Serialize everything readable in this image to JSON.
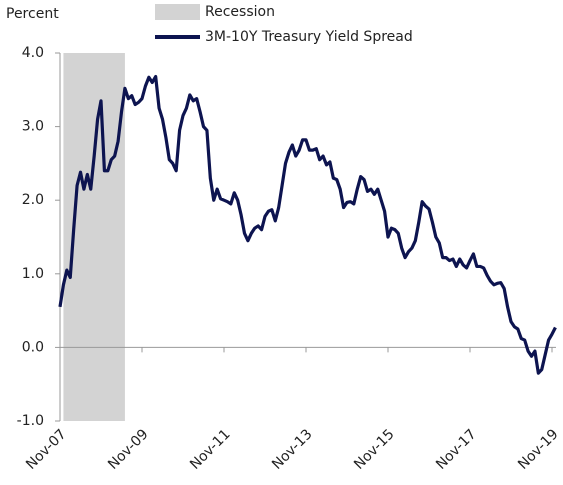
{
  "chart_data": {
    "type": "line",
    "y_label": "Percent",
    "x": [
      "2007-11",
      "2007-12",
      "2008-01",
      "2008-02",
      "2008-03",
      "2008-04",
      "2008-05",
      "2008-06",
      "2008-07",
      "2008-08",
      "2008-09",
      "2008-10",
      "2008-11",
      "2008-12",
      "2009-01",
      "2009-02",
      "2009-03",
      "2009-04",
      "2009-05",
      "2009-06",
      "2009-07",
      "2009-08",
      "2009-09",
      "2009-10",
      "2009-11",
      "2009-12",
      "2010-01",
      "2010-02",
      "2010-03",
      "2010-04",
      "2010-05",
      "2010-06",
      "2010-07",
      "2010-08",
      "2010-09",
      "2010-10",
      "2010-11",
      "2010-12",
      "2011-01",
      "2011-02",
      "2011-03",
      "2011-04",
      "2011-05",
      "2011-06",
      "2011-07",
      "2011-08",
      "2011-09",
      "2011-10",
      "2011-11",
      "2011-12",
      "2012-01",
      "2012-02",
      "2012-03",
      "2012-04",
      "2012-05",
      "2012-06",
      "2012-07",
      "2012-08",
      "2012-09",
      "2012-10",
      "2012-11",
      "2012-12",
      "2013-01",
      "2013-02",
      "2013-03",
      "2013-04",
      "2013-05",
      "2013-06",
      "2013-07",
      "2013-08",
      "2013-09",
      "2013-10",
      "2013-11",
      "2013-12",
      "2014-01",
      "2014-02",
      "2014-03",
      "2014-04",
      "2014-05",
      "2014-06",
      "2014-07",
      "2014-08",
      "2014-09",
      "2014-10",
      "2014-11",
      "2014-12",
      "2015-01",
      "2015-02",
      "2015-03",
      "2015-04",
      "2015-05",
      "2015-06",
      "2015-07",
      "2015-08",
      "2015-09",
      "2015-10",
      "2015-11",
      "2015-12",
      "2016-01",
      "2016-02",
      "2016-03",
      "2016-04",
      "2016-05",
      "2016-06",
      "2016-07",
      "2016-08",
      "2016-09",
      "2016-10",
      "2016-11",
      "2016-12",
      "2017-01",
      "2017-02",
      "2017-03",
      "2017-04",
      "2017-05",
      "2017-06",
      "2017-07",
      "2017-08",
      "2017-09",
      "2017-10",
      "2017-11",
      "2017-12",
      "2018-01",
      "2018-02",
      "2018-03",
      "2018-04",
      "2018-05",
      "2018-06",
      "2018-07",
      "2018-08",
      "2018-09",
      "2018-10",
      "2018-11",
      "2018-12",
      "2019-01",
      "2019-02",
      "2019-03",
      "2019-04",
      "2019-05",
      "2019-06",
      "2019-07",
      "2019-08",
      "2019-09",
      "2019-10",
      "2019-11",
      "2019-12"
    ],
    "series": [
      {
        "name": "3M-10Y Treasury Yield Spread",
        "color": "#0d1450",
        "values": [
          0.55,
          0.85,
          1.05,
          0.95,
          1.6,
          2.2,
          2.38,
          2.15,
          2.35,
          2.15,
          2.6,
          3.1,
          3.35,
          2.4,
          2.4,
          2.55,
          2.6,
          2.8,
          3.2,
          3.52,
          3.38,
          3.42,
          3.3,
          3.33,
          3.38,
          3.55,
          3.67,
          3.6,
          3.68,
          3.25,
          3.1,
          2.85,
          2.55,
          2.5,
          2.4,
          2.95,
          3.15,
          3.25,
          3.43,
          3.35,
          3.38,
          3.2,
          3.0,
          2.95,
          2.3,
          2.0,
          2.15,
          2.02,
          2.0,
          1.98,
          1.95,
          2.1,
          2.0,
          1.8,
          1.55,
          1.45,
          1.55,
          1.62,
          1.65,
          1.6,
          1.78,
          1.85,
          1.87,
          1.72,
          1.9,
          2.2,
          2.5,
          2.65,
          2.75,
          2.6,
          2.68,
          2.82,
          2.82,
          2.68,
          2.68,
          2.7,
          2.55,
          2.6,
          2.48,
          2.52,
          2.3,
          2.28,
          2.15,
          1.9,
          1.97,
          1.98,
          1.95,
          2.15,
          2.32,
          2.28,
          2.12,
          2.15,
          2.08,
          2.15,
          2.0,
          1.85,
          1.5,
          1.62,
          1.6,
          1.55,
          1.35,
          1.22,
          1.3,
          1.35,
          1.45,
          1.7,
          1.98,
          1.92,
          1.88,
          1.7,
          1.5,
          1.42,
          1.22,
          1.22,
          1.18,
          1.2,
          1.1,
          1.2,
          1.12,
          1.08,
          1.18,
          1.27,
          1.1,
          1.1,
          1.08,
          0.98,
          0.9,
          0.85,
          0.87,
          0.88,
          0.8,
          0.55,
          0.35,
          0.28,
          0.25,
          0.12,
          0.1,
          -0.05,
          -0.12,
          -0.05,
          -0.35,
          -0.3,
          -0.1,
          0.1,
          0.18,
          0.27
        ]
      }
    ],
    "shaded_regions": [
      {
        "name": "Recession",
        "start": "2007-12",
        "end": "2009-06",
        "color": "#d3d3d3"
      }
    ],
    "xlim": [
      "2007-11",
      "2019-11"
    ],
    "xticks": [
      {
        "value": "2007-11",
        "label": "Nov-07"
      },
      {
        "value": "2009-11",
        "label": "Nov-09"
      },
      {
        "value": "2011-11",
        "label": "Nov-11"
      },
      {
        "value": "2013-11",
        "label": "Nov-13"
      },
      {
        "value": "2015-11",
        "label": "Nov-15"
      },
      {
        "value": "2017-11",
        "label": "Nov-17"
      },
      {
        "value": "2019-11",
        "label": "Nov-19"
      }
    ],
    "ylim": [
      -1,
      4
    ],
    "yticks": [
      {
        "value": -1,
        "label": "-1.0"
      },
      {
        "value": 0,
        "label": "0.0"
      },
      {
        "value": 1,
        "label": "1.0"
      },
      {
        "value": 2,
        "label": "2.0"
      },
      {
        "value": 3,
        "label": "3.0"
      },
      {
        "value": 4,
        "label": "4.0"
      }
    ],
    "grid": false
  }
}
